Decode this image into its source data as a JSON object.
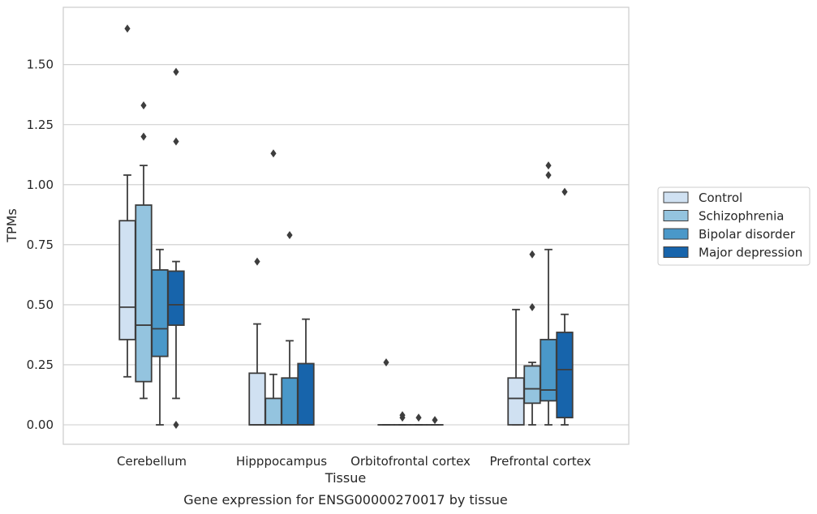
{
  "chart_data": {
    "type": "boxplot",
    "caption": "Gene expression for ENSG00000270017 by tissue",
    "xlabel": "Tissue",
    "ylabel": "TPMs",
    "ylim": [
      -0.08,
      1.74
    ],
    "yticks": [
      "0.00",
      "0.25",
      "0.50",
      "0.75",
      "1.00",
      "1.25",
      "1.50"
    ],
    "ytick_values": [
      0,
      0.25,
      0.5,
      0.75,
      1.0,
      1.25,
      1.5
    ],
    "categories": [
      "Cerebellum",
      "Hipppocampus",
      "Orbitofrontal cortex",
      "Prefrontal cortex"
    ],
    "grid": "horizontal",
    "legend_position": "right",
    "series": [
      {
        "name": "Control",
        "color": "#d0e1f2",
        "boxes": [
          {
            "whislo": 0.2,
            "q1": 0.355,
            "med": 0.49,
            "q3": 0.85,
            "whishi": 1.04,
            "fliers": [
              1.65
            ]
          },
          {
            "whislo": 0.0,
            "q1": 0.0,
            "med": 0.0,
            "q3": 0.215,
            "whishi": 0.42,
            "fliers": [
              0.68
            ]
          },
          {
            "whislo": 0.0,
            "q1": 0.0,
            "med": 0.0,
            "q3": 0.0,
            "whishi": 0.0,
            "fliers": [
              0.26
            ]
          },
          {
            "whislo": 0.0,
            "q1": 0.0,
            "med": 0.11,
            "q3": 0.195,
            "whishi": 0.48,
            "fliers": []
          }
        ]
      },
      {
        "name": "Schizophrenia",
        "color": "#94c4df",
        "boxes": [
          {
            "whislo": 0.11,
            "q1": 0.18,
            "med": 0.415,
            "q3": 0.915,
            "whishi": 1.08,
            "fliers": [
              1.33,
              1.2
            ]
          },
          {
            "whislo": 0.0,
            "q1": 0.0,
            "med": 0.0,
            "q3": 0.11,
            "whishi": 0.21,
            "fliers": [
              1.13
            ]
          },
          {
            "whislo": 0.0,
            "q1": 0.0,
            "med": 0.0,
            "q3": 0.0,
            "whishi": 0.0,
            "fliers": [
              0.04,
              0.03
            ]
          },
          {
            "whislo": 0.0,
            "q1": 0.09,
            "med": 0.15,
            "q3": 0.245,
            "whishi": 0.26,
            "fliers": [
              0.71,
              0.49
            ]
          }
        ]
      },
      {
        "name": "Bipolar disorder",
        "color": "#4a98c9",
        "boxes": [
          {
            "whislo": 0.0,
            "q1": 0.285,
            "med": 0.4,
            "q3": 0.645,
            "whishi": 0.73,
            "fliers": []
          },
          {
            "whislo": 0.0,
            "q1": 0.0,
            "med": 0.0,
            "q3": 0.195,
            "whishi": 0.35,
            "fliers": [
              0.79
            ]
          },
          {
            "whislo": 0.0,
            "q1": 0.0,
            "med": 0.0,
            "q3": 0.0,
            "whishi": 0.0,
            "fliers": [
              0.03
            ]
          },
          {
            "whislo": 0.0,
            "q1": 0.1,
            "med": 0.145,
            "q3": 0.355,
            "whishi": 0.73,
            "fliers": [
              1.08,
              1.04
            ]
          }
        ]
      },
      {
        "name": "Major depression",
        "color": "#1764ab",
        "boxes": [
          {
            "whislo": 0.11,
            "q1": 0.415,
            "med": 0.5,
            "q3": 0.64,
            "whishi": 0.68,
            "fliers": [
              1.47,
              1.18,
              0.0
            ]
          },
          {
            "whislo": 0.0,
            "q1": 0.0,
            "med": 0.0,
            "q3": 0.255,
            "whishi": 0.44,
            "fliers": []
          },
          {
            "whislo": 0.0,
            "q1": 0.0,
            "med": 0.0,
            "q3": 0.0,
            "whishi": 0.0,
            "fliers": [
              0.02
            ]
          },
          {
            "whislo": 0.0,
            "q1": 0.03,
            "med": 0.23,
            "q3": 0.385,
            "whishi": 0.46,
            "fliers": [
              0.97
            ]
          }
        ]
      }
    ]
  }
}
